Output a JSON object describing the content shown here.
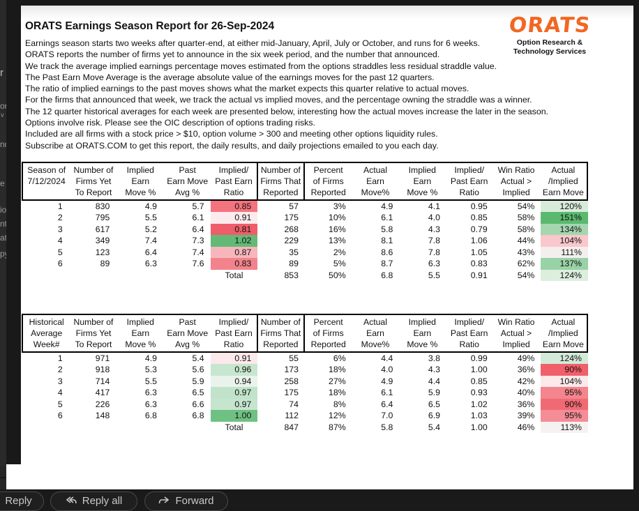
{
  "report": {
    "title": "ORATS Earnings Season Report for 26-Sep-2024",
    "intro_lines": [
      "Earnings season starts two weeks after quarter-end, at either mid-January, April, July or October, and runs for 6 weeks.",
      "ORATS reports the number of firms yet to announce in the six week period, and the number that announced.",
      "We track the average implied earnings percentage moves estimated from the options straddles less residual straddle value.",
      "The Past Earn Move Average is the average absolute value of the earnings moves for the past 12 quarters.",
      "The ratio of implied earnings to the past moves shows what the market expects this quarter relative to actual moves.",
      "For the firms that announced that week, we track the actual vs implied moves, and the percentage owning the straddle was a winner.",
      "The 12 quarter historical averages for each week are presented below, interesting how the actual moves increase the later in the season.",
      "Options involve risk. Please see the OIC description of options trading risks.",
      "Included are all firms with a stock price > $10, option volume > 300 and meeting other options liquidity rules.",
      "Subscribe at ORATS.COM to get this report, the daily results, and daily projections emailed to you each day."
    ]
  },
  "logo": {
    "word": "ORATS",
    "sub1": "Option Research &",
    "sub2": "Technology Services",
    "color": "#f26722"
  },
  "tables": [
    {
      "name": "current-season",
      "header_cols": [
        [
          "Season of",
          "7/12/2024",
          ""
        ],
        [
          "Number of",
          "Firms Yet",
          "To Report"
        ],
        [
          "Implied",
          "Earn",
          "Move %"
        ],
        [
          "Past",
          "Earn Move",
          "Avg %"
        ],
        [
          "Implied/",
          "Past Earn",
          "Ratio"
        ],
        [
          "Number of",
          "Firms That",
          "Reported"
        ],
        [
          "Percent",
          "of Firms",
          "Reported"
        ],
        [
          "Actual",
          "Earn",
          "Move%"
        ],
        [
          "Implied",
          "Earn",
          "Move %"
        ],
        [
          "Implied/",
          "Past Earn",
          "Ratio"
        ],
        [
          "Win Ratio",
          "Actual >",
          "Implied"
        ],
        [
          "Actual",
          "/Implied",
          "Earn Move"
        ]
      ],
      "rows": [
        {
          "cells": [
            "1",
            "830",
            "4.9",
            "5.7",
            "0.85",
            "57",
            "3%",
            "4.9",
            "4.1",
            "0.95",
            "54%",
            "120%"
          ],
          "ratio_bg": "#f3747e",
          "actual_bg": "#d8ebdb"
        },
        {
          "cells": [
            "2",
            "795",
            "5.5",
            "6.1",
            "0.91",
            "175",
            "10%",
            "6.1",
            "4.0",
            "0.85",
            "58%",
            "151%"
          ],
          "ratio_bg": "#fcebed",
          "actual_bg": "#5bb96f"
        },
        {
          "cells": [
            "3",
            "617",
            "5.2",
            "6.4",
            "0.81",
            "268",
            "16%",
            "5.8",
            "4.3",
            "0.79",
            "58%",
            "134%"
          ],
          "ratio_bg": "#ee5e6a",
          "actual_bg": "#a5d6b0"
        },
        {
          "cells": [
            "4",
            "349",
            "7.4",
            "7.3",
            "1.02",
            "229",
            "13%",
            "8.1",
            "7.8",
            "1.06",
            "44%",
            "104%"
          ],
          "ratio_bg": "#62ba76",
          "actual_bg": "#f9c7cc"
        },
        {
          "cells": [
            "5",
            "123",
            "6.4",
            "7.4",
            "0.87",
            "35",
            "2%",
            "8.6",
            "7.8",
            "1.05",
            "43%",
            "111%"
          ],
          "ratio_bg": "#f7b6bc",
          "actual_bg": "#f4efef"
        },
        {
          "cells": [
            "6",
            "89",
            "6.3",
            "7.6",
            "0.83",
            "89",
            "5%",
            "8.7",
            "6.3",
            "0.83",
            "62%",
            "137%"
          ],
          "ratio_bg": "#f2838c",
          "actual_bg": "#99d2a6"
        }
      ],
      "total": {
        "cells": [
          "",
          "",
          "",
          "",
          "Total",
          "853",
          "50%",
          "6.8",
          "5.5",
          "0.91",
          "54%",
          "124%"
        ],
        "actual_bg": "#dceede"
      }
    },
    {
      "name": "historical-average",
      "header_cols": [
        [
          "Historical",
          "Average",
          "Week#"
        ],
        [
          "Number of",
          "Firms Yet",
          "To Report"
        ],
        [
          "Implied",
          "Earn",
          "Move %"
        ],
        [
          "Past",
          "Earn Move",
          "Avg %"
        ],
        [
          "Implied/",
          "Past Earn",
          "Ratio"
        ],
        [
          "Number of",
          "Firms That",
          "Reported"
        ],
        [
          "Percent",
          "of Firms",
          "Reported"
        ],
        [
          "Actual",
          "Earn",
          "Move%"
        ],
        [
          "Implied",
          "Earn",
          "Move %"
        ],
        [
          "Implied/",
          "Past Earn",
          "Ratio"
        ],
        [
          "Win Ratio",
          "Actual >",
          "Implied"
        ],
        [
          "Actual",
          "/Implied",
          "Earn Move"
        ]
      ],
      "rows": [
        {
          "cells": [
            "1",
            "971",
            "4.9",
            "5.4",
            "0.91",
            "55",
            "6%",
            "4.4",
            "3.8",
            "0.99",
            "49%",
            "124%"
          ],
          "ratio_bg": "#fce9eb",
          "actual_bg": "#d4ead9"
        },
        {
          "cells": [
            "2",
            "918",
            "5.3",
            "5.6",
            "0.96",
            "173",
            "18%",
            "4.0",
            "4.3",
            "1.00",
            "36%",
            "90%"
          ],
          "ratio_bg": "#c7e6cf",
          "actual_bg": "#f15f6a"
        },
        {
          "cells": [
            "3",
            "714",
            "5.5",
            "5.9",
            "0.94",
            "258",
            "27%",
            "4.9",
            "4.4",
            "0.85",
            "42%",
            "104%"
          ],
          "ratio_bg": "#e9f3ec",
          "actual_bg": "#fce9ea"
        },
        {
          "cells": [
            "4",
            "417",
            "6.3",
            "6.5",
            "0.97",
            "175",
            "18%",
            "6.1",
            "5.9",
            "0.93",
            "40%",
            "95%"
          ],
          "ratio_bg": "#c0e3ca",
          "actual_bg": "#f4848d"
        },
        {
          "cells": [
            "5",
            "226",
            "6.3",
            "6.6",
            "0.97",
            "74",
            "8%",
            "6.4",
            "6.5",
            "1.02",
            "36%",
            "90%"
          ],
          "ratio_bg": "#c5e5ce",
          "actual_bg": "#f06a74"
        },
        {
          "cells": [
            "6",
            "148",
            "6.8",
            "6.8",
            "1.00",
            "112",
            "12%",
            "7.0",
            "6.9",
            "1.03",
            "39%",
            "95%"
          ],
          "ratio_bg": "#6fc183",
          "actual_bg": "#f58d96"
        }
      ],
      "total": {
        "cells": [
          "",
          "",
          "",
          "",
          "Total",
          "847",
          "87%",
          "5.8",
          "5.4",
          "1.00",
          "46%",
          "113%"
        ],
        "actual_bg": "#f6f2f2"
      }
    }
  ],
  "toolbar": {
    "reply": "Reply",
    "reply_all": "Reply all",
    "forward": "Forward"
  },
  "left_pane_fragments": [
    "r",
    "or",
    "∨",
    "nd",
    "e i",
    "io",
    "nt",
    "at",
    "py"
  ]
}
